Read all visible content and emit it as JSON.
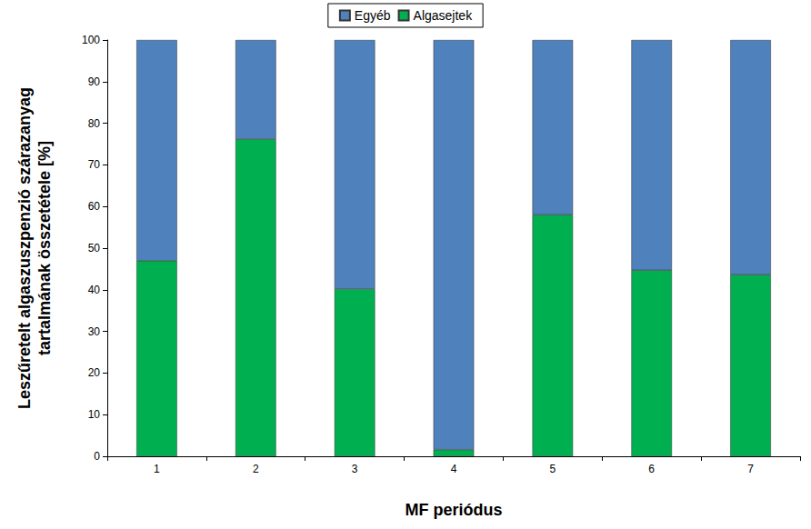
{
  "chart_data": {
    "type": "bar",
    "x_label": "MF periódus",
    "y_label": "Leszűretelt algaszuszpenzió szárazanyag\ntartalmának összetétele [%]",
    "categories": [
      "1",
      "2",
      "3",
      "4",
      "5",
      "6",
      "7"
    ],
    "series": [
      {
        "name": "Algasejtek",
        "color": "#00b050",
        "values": [
          47,
          76.2,
          40.2,
          1.6,
          58,
          44.7,
          43.6
        ]
      },
      {
        "name": "Egyéb",
        "color": "#4f81bd",
        "values": [
          53,
          23.8,
          59.8,
          98.4,
          42,
          55.3,
          56.4
        ]
      }
    ],
    "ylim": [
      0,
      100
    ],
    "yticks": [
      0,
      10,
      20,
      30,
      40,
      50,
      60,
      70,
      80,
      90,
      100
    ],
    "stacked": true,
    "grid": false,
    "legend": "top"
  }
}
